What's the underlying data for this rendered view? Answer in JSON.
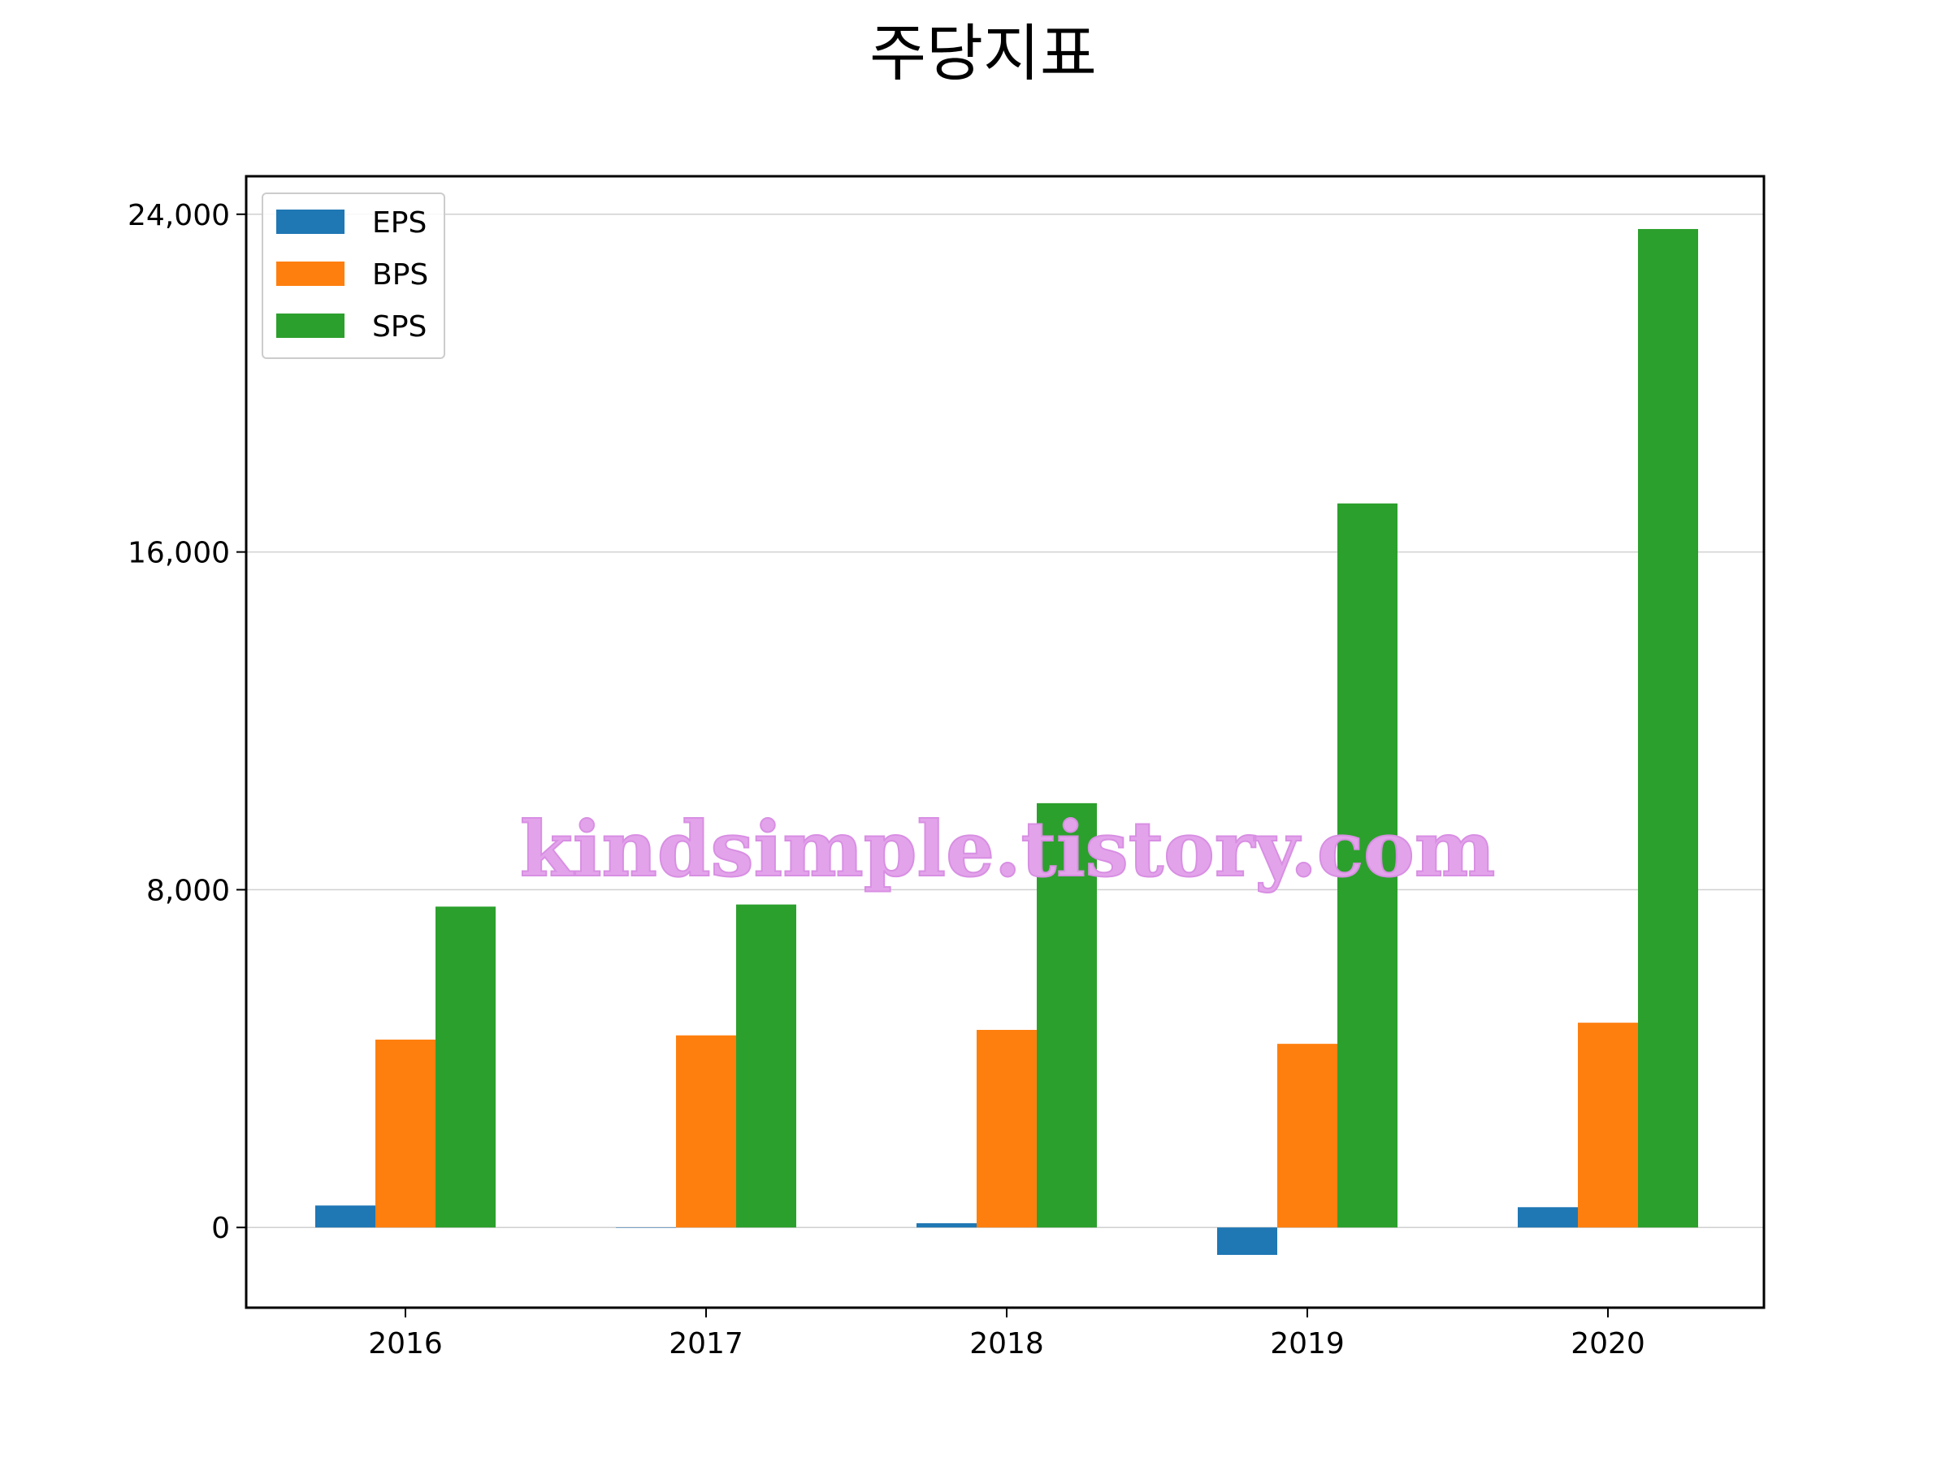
{
  "chart_data": {
    "type": "bar",
    "title": "주당지표",
    "categories": [
      "2016",
      "2017",
      "2018",
      "2019",
      "2020"
    ],
    "series": [
      {
        "name": "EPS",
        "color": "#1f77b4",
        "values": [
          520,
          0,
          100,
          -650,
          480
        ]
      },
      {
        "name": "BPS",
        "color": "#ff7f0e",
        "values": [
          4450,
          4550,
          4680,
          4350,
          4850
        ]
      },
      {
        "name": "SPS",
        "color": "#2ca02c",
        "values": [
          7600,
          7650,
          10050,
          17150,
          23650
        ]
      }
    ],
    "yticks": [
      0,
      8000,
      16000,
      24000
    ],
    "ytick_labels": [
      "0",
      "8,000",
      "16,000",
      "24,000"
    ],
    "ylim": [
      -1900,
      24900
    ],
    "xlabel": "",
    "ylabel": "",
    "grid": "horizontal",
    "legend_position": "top-left"
  },
  "watermark": "kindsimple.tistory.com"
}
